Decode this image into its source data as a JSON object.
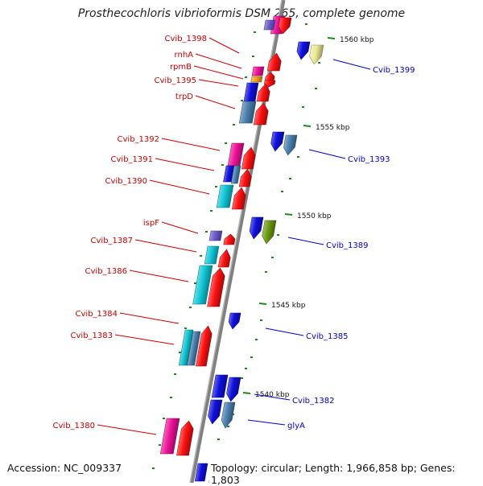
{
  "title": "Prosthecochloris vibrioformis DSM 265, complete genome",
  "footer": {
    "accession": "Accession: NC_009337",
    "summary": "Topology: circular; Length: 1,966,858 bp; Genes: 1,803"
  },
  "colors": {
    "backbone": "#808080",
    "label_left": "#cc0000",
    "label_right": "#0000cc",
    "tick": "#1a8a1a",
    "red": "#ff1010",
    "blue": "#1010e0",
    "magenta": "#ee1199",
    "steel": "#4a80b0",
    "cyan": "#10c8d8",
    "olive": "#6a9a10",
    "khaki": "#eeea99",
    "purple": "#6a5ad0",
    "orange": "#f4a020",
    "green": "#aaee44"
  },
  "scale_labels": [
    "1560 kbp",
    "1555 kbp",
    "1550 kbp",
    "1545 kbp",
    "1540 kbp"
  ],
  "left_labels": [
    "Cvib_1398",
    "rnhA",
    "rpmB",
    "Cvib_1395",
    "trpD",
    "Cvib_1392",
    "Cvib_1391",
    "Cvib_1390",
    "ispF",
    "Cvib_1387",
    "Cvib_1386",
    "Cvib_1384",
    "Cvib_1383",
    "Cvib_1380"
  ],
  "right_labels": [
    "Cvib_1399",
    "Cvib_1393",
    "Cvib_1389",
    "Cvib_1385",
    "Cvib_1382",
    "glyA"
  ]
}
